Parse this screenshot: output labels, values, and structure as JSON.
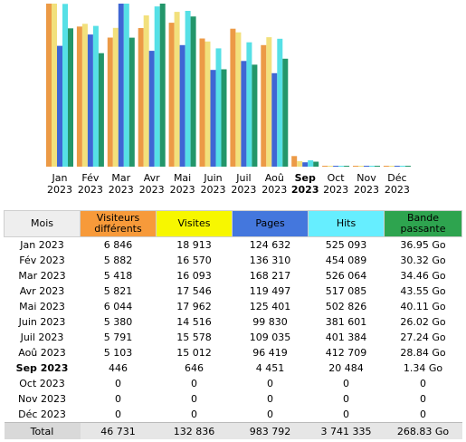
{
  "chart_data": {
    "type": "bar",
    "categories": [
      "Jan",
      "Fév",
      "Mar",
      "Avr",
      "Mai",
      "Juin",
      "Juil",
      "Aoû",
      "Sep",
      "Oct",
      "Nov",
      "Déc"
    ],
    "years": [
      "2023",
      "2023",
      "2023",
      "2023",
      "2023",
      "2023",
      "2023",
      "2023",
      "2023",
      "2023",
      "2023",
      "2023"
    ],
    "current_index": 8,
    "series": [
      {
        "name": "Visiteurs différents",
        "color": "#ec9a46",
        "values": [
          6846,
          5882,
          5418,
          5821,
          6044,
          5380,
          5791,
          5103,
          446,
          0,
          0,
          0
        ]
      },
      {
        "name": "Visites",
        "color": "#f2e07c",
        "values": [
          18913,
          16570,
          16093,
          17546,
          17962,
          14516,
          15578,
          15012,
          646,
          0,
          0,
          0
        ]
      },
      {
        "name": "Pages",
        "color": "#3f66d4",
        "values": [
          124632,
          136310,
          168217,
          119497,
          125401,
          99830,
          109035,
          96419,
          4451,
          0,
          0,
          0
        ]
      },
      {
        "name": "Hits",
        "color": "#56e0e6",
        "values": [
          525093,
          454089,
          526064,
          517085,
          502826,
          381601,
          401384,
          412709,
          20484,
          0,
          0,
          0
        ]
      },
      {
        "name": "Bande passante",
        "color": "#23966a",
        "values": [
          36.95,
          30.32,
          34.46,
          43.55,
          40.11,
          26.02,
          27.24,
          28.84,
          1.34,
          0,
          0,
          0
        ]
      }
    ]
  },
  "table": {
    "headers": {
      "month": "Mois",
      "visitors": "Visiteurs différents",
      "visits": "Visites",
      "pages": "Pages",
      "hits": "Hits",
      "bandwidth": "Bande passante"
    },
    "header_colors": {
      "visitors": "#f79a3a",
      "visits": "#f7f700",
      "pages": "#4477dd",
      "hits": "#66eeff",
      "bandwidth": "#2ea44f"
    },
    "rows": [
      {
        "month": "Jan 2023",
        "visitors": "6 846",
        "visits": "18 913",
        "pages": "124 632",
        "hits": "525 093",
        "bandwidth": "36.95 Go"
      },
      {
        "month": "Fév 2023",
        "visitors": "5 882",
        "visits": "16 570",
        "pages": "136 310",
        "hits": "454 089",
        "bandwidth": "30.32 Go"
      },
      {
        "month": "Mar 2023",
        "visitors": "5 418",
        "visits": "16 093",
        "pages": "168 217",
        "hits": "526 064",
        "bandwidth": "34.46 Go"
      },
      {
        "month": "Avr 2023",
        "visitors": "5 821",
        "visits": "17 546",
        "pages": "119 497",
        "hits": "517 085",
        "bandwidth": "43.55 Go"
      },
      {
        "month": "Mai 2023",
        "visitors": "6 044",
        "visits": "17 962",
        "pages": "125 401",
        "hits": "502 826",
        "bandwidth": "40.11 Go"
      },
      {
        "month": "Juin 2023",
        "visitors": "5 380",
        "visits": "14 516",
        "pages": "99 830",
        "hits": "381 601",
        "bandwidth": "26.02 Go"
      },
      {
        "month": "Juil 2023",
        "visitors": "5 791",
        "visits": "15 578",
        "pages": "109 035",
        "hits": "401 384",
        "bandwidth": "27.24 Go"
      },
      {
        "month": "Aoû 2023",
        "visitors": "5 103",
        "visits": "15 012",
        "pages": "96 419",
        "hits": "412 709",
        "bandwidth": "28.84 Go"
      },
      {
        "month": "Sep 2023",
        "visitors": "446",
        "visits": "646",
        "pages": "4 451",
        "hits": "20 484",
        "bandwidth": "1.34 Go"
      },
      {
        "month": "Oct 2023",
        "visitors": "0",
        "visits": "0",
        "pages": "0",
        "hits": "0",
        "bandwidth": "0"
      },
      {
        "month": "Nov 2023",
        "visitors": "0",
        "visits": "0",
        "pages": "0",
        "hits": "0",
        "bandwidth": "0"
      },
      {
        "month": "Déc 2023",
        "visitors": "0",
        "visits": "0",
        "pages": "0",
        "hits": "0",
        "bandwidth": "0"
      }
    ],
    "total": {
      "label": "Total",
      "visitors": "46 731",
      "visits": "132 836",
      "pages": "983 792",
      "hits": "3 741 335",
      "bandwidth": "268.83 Go"
    }
  }
}
